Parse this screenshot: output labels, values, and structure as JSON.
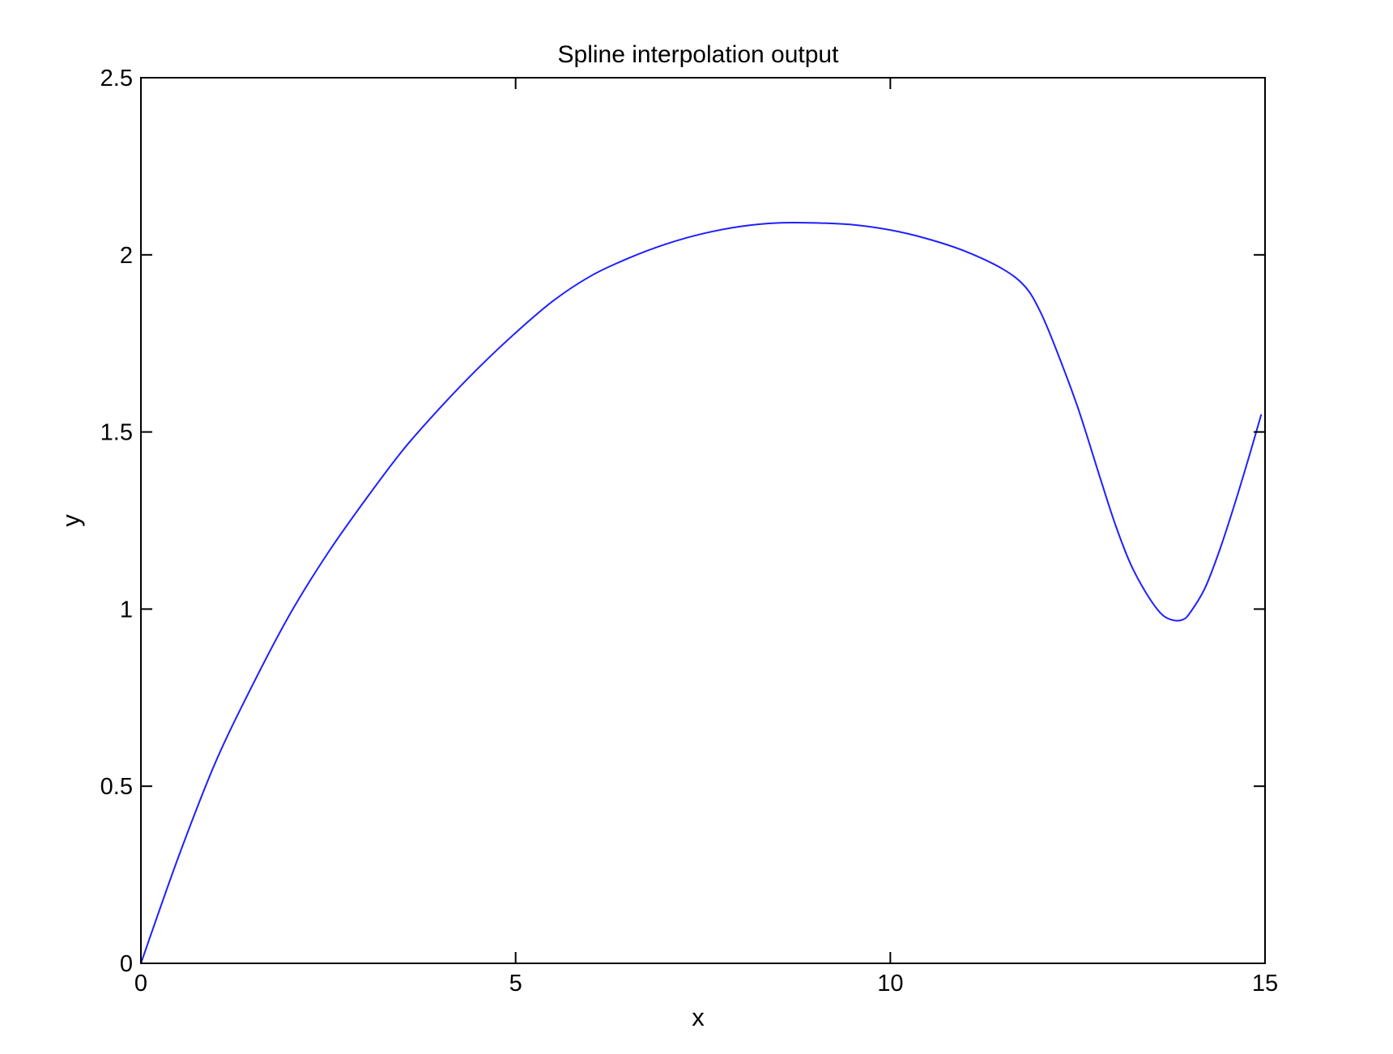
{
  "chart_data": {
    "type": "line",
    "title": "Spline interpolation output",
    "xlabel": "x",
    "ylabel": "y",
    "xlim": [
      0,
      15
    ],
    "ylim": [
      0,
      2.5
    ],
    "xticks": [
      0,
      5,
      10,
      15
    ],
    "xtick_labels": [
      "0",
      "5",
      "10",
      "15"
    ],
    "yticks": [
      0,
      0.5,
      1,
      1.5,
      2,
      2.5
    ],
    "ytick_labels": [
      "0",
      "0.5",
      "1",
      "1.5",
      "2",
      "2.5"
    ],
    "grid": false,
    "legend": "none",
    "series": [
      {
        "color": "#1f1fff",
        "x": [
          0,
          0.5,
          1,
          1.5,
          2,
          2.5,
          3,
          3.5,
          4,
          4.5,
          5,
          5.5,
          6,
          6.5,
          7,
          7.5,
          8,
          8.5,
          9,
          9.5,
          10,
          10.5,
          11,
          11.5,
          11.8,
          12,
          12.2,
          12.5,
          12.8,
          13,
          13.2,
          13.4,
          13.6,
          13.75,
          13.9,
          14,
          14.2,
          14.4,
          14.6,
          14.8,
          14.95
        ],
        "y": [
          0,
          0.3,
          0.57,
          0.79,
          0.99,
          1.16,
          1.31,
          1.45,
          1.57,
          1.68,
          1.78,
          1.87,
          1.94,
          1.99,
          2.03,
          2.06,
          2.08,
          2.09,
          2.09,
          2.085,
          2.07,
          2.045,
          2.01,
          1.96,
          1.91,
          1.84,
          1.74,
          1.57,
          1.37,
          1.24,
          1.13,
          1.05,
          0.99,
          0.97,
          0.97,
          0.99,
          1.06,
          1.17,
          1.3,
          1.44,
          1.55
        ]
      }
    ]
  }
}
